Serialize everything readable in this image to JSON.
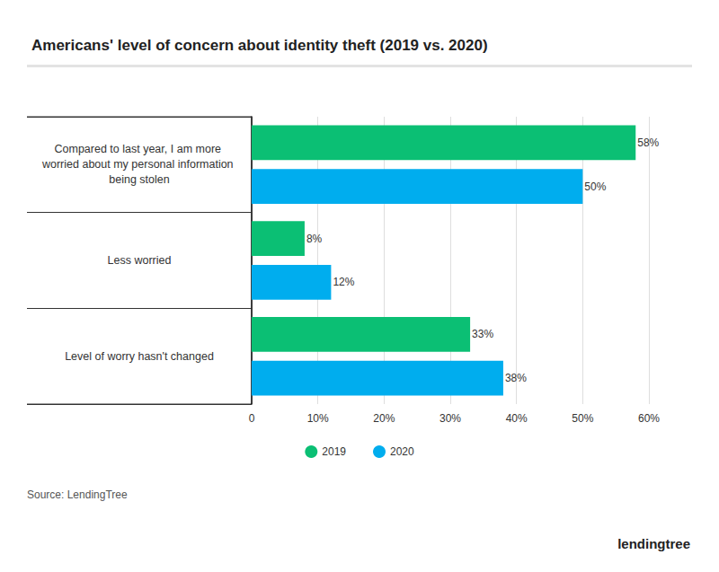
{
  "chart_data": {
    "type": "bar",
    "title": "Americans' level of concern about identity theft (2019 vs. 2020)",
    "orientation": "horizontal",
    "categories": [
      "Compared to last year, I am more worried about my personal information being stolen",
      "Less worried",
      "Level of worry hasn't changed"
    ],
    "series": [
      {
        "name": "2019",
        "color": "#0bbf74",
        "values": [
          58,
          8,
          33
        ],
        "value_labels": [
          "58%",
          "8%",
          "33%"
        ]
      },
      {
        "name": "2020",
        "color": "#00adee",
        "values": [
          50,
          12,
          38
        ],
        "value_labels": [
          "50%",
          "12%",
          "38%"
        ]
      }
    ],
    "xlim": [
      0,
      60
    ],
    "xticks": [
      0,
      {
        "value": 10,
        "label": "10%"
      },
      {
        "value": 20,
        "label": "20%"
      },
      {
        "value": 30,
        "label": "30%"
      },
      {
        "value": 40,
        "label": "40%"
      },
      {
        "value": 50,
        "label": "50%"
      },
      {
        "value": 60,
        "label": "60%"
      }
    ],
    "grid": true,
    "legend": "bottom",
    "data_labels": true,
    "source": "Source: LendingTree",
    "logo": "lendingtree"
  }
}
